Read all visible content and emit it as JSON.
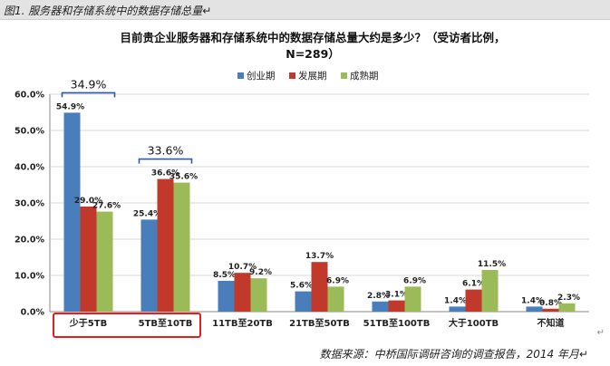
{
  "figure_caption": "图1. 服务器和存储系统中的数据存储总量↵",
  "source_note": "数据来源：中桥国际调研咨询的调查报告，2014 年月↵",
  "return_mark": "↵",
  "colors": {
    "series": [
      "#4a7ebb",
      "#c0392b",
      "#9bbb59"
    ],
    "highlight_box": "#e0201f",
    "bracket": "#2e5aa7",
    "grid": "#d9d9d9"
  },
  "chart_data": {
    "type": "bar",
    "title": "目前贵企业服务器和存储系统中的数据存储总量大约是多少？（受访者比例，",
    "subtitle": "N=289）",
    "xlabel": "",
    "ylabel": "",
    "ylim": [
      0,
      60
    ],
    "yticks": [
      "0.0%",
      "10.0%",
      "20.0%",
      "30.0%",
      "40.0%",
      "50.0%",
      "60.0%"
    ],
    "grid": true,
    "legend_position": "top",
    "categories": [
      "少于5TB",
      "5TB至10TB",
      "11TB至20TB",
      "21TB至50TB",
      "51TB至100TB",
      "大于100TB",
      "不知道"
    ],
    "series": [
      {
        "name": "创业期",
        "values": [
          54.9,
          25.4,
          8.5,
          5.6,
          2.8,
          1.4,
          1.4
        ],
        "labels": [
          "54.9%",
          "25.4%",
          "8.5%",
          "5.6%",
          "2.8%",
          "1.4%",
          "1.4%"
        ]
      },
      {
        "name": "发展期",
        "values": [
          29.0,
          36.6,
          10.7,
          13.7,
          3.1,
          6.1,
          0.8
        ],
        "labels": [
          "29.0%",
          "36.6%",
          "10.7%",
          "13.7%",
          "3.1%",
          "6.1%",
          "0.8%"
        ]
      },
      {
        "name": "成熟期",
        "values": [
          27.6,
          35.6,
          9.2,
          6.9,
          6.9,
          11.5,
          2.3
        ],
        "labels": [
          "27.6%",
          "35.6%",
          "9.2%",
          "6.9%",
          "6.9%",
          "11.5%",
          "2.3%"
        ]
      }
    ],
    "annotations": [
      {
        "text": "34.9%",
        "category_index": 0
      },
      {
        "text": "33.6%",
        "category_index": 1
      }
    ],
    "highlighted_categories": [
      0,
      1
    ]
  }
}
